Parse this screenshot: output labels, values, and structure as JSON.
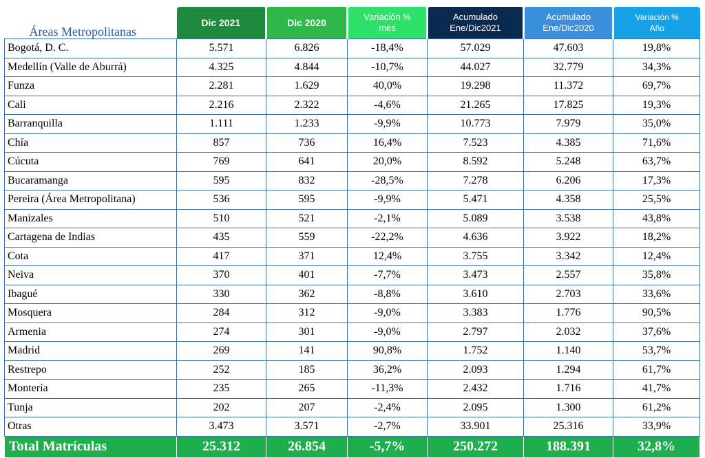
{
  "header": {
    "title": "Áreas Metropolitanas",
    "columns": [
      {
        "line1": "Dic 2021",
        "line2": ""
      },
      {
        "line1": "Dic 2020",
        "line2": ""
      },
      {
        "line1": "Variación %",
        "line2": "mes"
      },
      {
        "line1": "Acumulado",
        "line2": "Ene/Dic2021"
      },
      {
        "line1": "Acumulado",
        "line2": "Ene/Dic2020"
      },
      {
        "line1": "Variación %",
        "line2": "Año"
      }
    ]
  },
  "colors": {
    "dic2021": "#1f8a3e",
    "dic2020": "#2fb84a",
    "var_mes": "#2fe06a",
    "acum2021": "#0a2a4f",
    "acum2020": "#3a8fdc",
    "var_anio": "#17a2e6",
    "total": "#1fae4e",
    "title": "#1f5aa6"
  },
  "rows": [
    [
      "Bogotá, D. C.",
      "5.571",
      "6.826",
      "-18,4%",
      "57.029",
      "47.603",
      "19,8%"
    ],
    [
      "Medellín (Valle de Aburrá)",
      "4.325",
      "4.844",
      "-10,7%",
      "44.027",
      "32.779",
      "34,3%"
    ],
    [
      "Funza",
      "2.281",
      "1.629",
      "40,0%",
      "19.298",
      "11.372",
      "69,7%"
    ],
    [
      "Cali",
      "2.216",
      "2.322",
      "-4,6%",
      "21.265",
      "17.825",
      "19,3%"
    ],
    [
      "Barranquilla",
      "1.111",
      "1.233",
      "-9,9%",
      "10.773",
      "7.979",
      "35,0%"
    ],
    [
      "Chía",
      "857",
      "736",
      "16,4%",
      "7.523",
      "4.385",
      "71,6%"
    ],
    [
      "Cúcuta",
      "769",
      "641",
      "20,0%",
      "8.592",
      "5.248",
      "63,7%"
    ],
    [
      "Bucaramanga",
      "595",
      "832",
      "-28,5%",
      "7.278",
      "6.206",
      "17,3%"
    ],
    [
      "Pereira (Área Metropolitana)",
      "536",
      "595",
      "-9,9%",
      "5.471",
      "4.358",
      "25,5%"
    ],
    [
      "Manizales",
      "510",
      "521",
      "-2,1%",
      "5.089",
      "3.538",
      "43,8%"
    ],
    [
      "Cartagena de Indias",
      "435",
      "559",
      "-22,2%",
      "4.636",
      "3.922",
      "18,2%"
    ],
    [
      "Cota",
      "417",
      "371",
      "12,4%",
      "3.755",
      "3.342",
      "12,4%"
    ],
    [
      "Neiva",
      "370",
      "401",
      "-7,7%",
      "3.473",
      "2.557",
      "35,8%"
    ],
    [
      "Ibagué",
      "330",
      "362",
      "-8,8%",
      "3.610",
      "2.703",
      "33,6%"
    ],
    [
      "Mosquera",
      "284",
      "312",
      "-9,0%",
      "3.383",
      "1.776",
      "90,5%"
    ],
    [
      "Armenia",
      "274",
      "301",
      "-9,0%",
      "2.797",
      "2.032",
      "37,6%"
    ],
    [
      "Madrid",
      "269",
      "141",
      "90,8%",
      "1.752",
      "1.140",
      "53,7%"
    ],
    [
      "Restrepo",
      "252",
      "185",
      "36,2%",
      "2.093",
      "1.294",
      "61,7%"
    ],
    [
      "Montería",
      "235",
      "265",
      "-11,3%",
      "2.432",
      "1.716",
      "41,7%"
    ],
    [
      "Tunja",
      "202",
      "207",
      "-2,4%",
      "2.095",
      "1.300",
      "61,2%"
    ],
    [
      "Otras",
      "3.473",
      "3.571",
      "-2,7%",
      "33.901",
      "25.316",
      "33,9%"
    ]
  ],
  "total": [
    "Total Matrículas",
    "25.312",
    "26.854",
    "-5,7%",
    "250.272",
    "188.391",
    "32,8%"
  ]
}
